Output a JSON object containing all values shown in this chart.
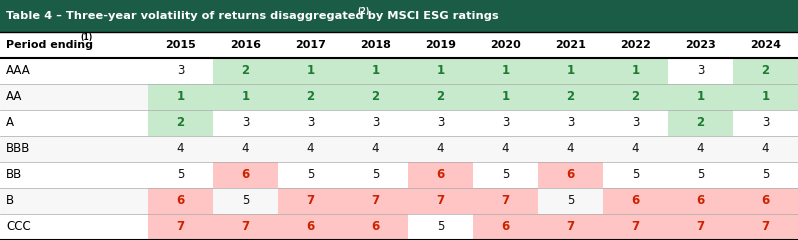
{
  "title": "Table 4 – Three-year volatility of returns disaggregated by MSCI ESG ratings",
  "title_superscript": "(2)",
  "col_header_label": "Period ending",
  "col_header_super": "(1)",
  "rows": [
    "AAA",
    "AA",
    "A",
    "BBB",
    "BB",
    "B",
    "CCC"
  ],
  "years": [
    "2015",
    "2016",
    "2017",
    "2018",
    "2019",
    "2020",
    "2021",
    "2022",
    "2023",
    "2024"
  ],
  "values": [
    [
      3,
      2,
      1,
      1,
      1,
      1,
      1,
      1,
      3,
      2
    ],
    [
      1,
      1,
      2,
      2,
      2,
      1,
      2,
      2,
      1,
      1
    ],
    [
      2,
      3,
      3,
      3,
      3,
      3,
      3,
      3,
      2,
      3
    ],
    [
      4,
      4,
      4,
      4,
      4,
      4,
      4,
      4,
      4,
      4
    ],
    [
      5,
      6,
      5,
      5,
      6,
      5,
      6,
      5,
      5,
      5
    ],
    [
      6,
      5,
      7,
      7,
      7,
      7,
      5,
      6,
      6,
      6
    ],
    [
      7,
      7,
      6,
      6,
      5,
      6,
      7,
      7,
      7,
      7
    ]
  ],
  "bg_colors": [
    [
      "none",
      "green",
      "green",
      "green",
      "green",
      "green",
      "green",
      "green",
      "none",
      "green"
    ],
    [
      "green",
      "green",
      "green",
      "green",
      "green",
      "green",
      "green",
      "green",
      "green",
      "green"
    ],
    [
      "green",
      "none",
      "none",
      "none",
      "none",
      "none",
      "none",
      "none",
      "green",
      "none"
    ],
    [
      "none",
      "none",
      "none",
      "none",
      "none",
      "none",
      "none",
      "none",
      "none",
      "none"
    ],
    [
      "none",
      "pink",
      "none",
      "none",
      "pink",
      "none",
      "pink",
      "none",
      "none",
      "none"
    ],
    [
      "pink",
      "none",
      "pink",
      "pink",
      "pink",
      "pink",
      "none",
      "pink",
      "pink",
      "pink"
    ],
    [
      "pink",
      "pink",
      "pink",
      "pink",
      "none",
      "pink",
      "pink",
      "pink",
      "pink",
      "pink"
    ]
  ],
  "text_colors": [
    [
      "black",
      "green",
      "green",
      "green",
      "green",
      "green",
      "green",
      "green",
      "black",
      "green"
    ],
    [
      "green",
      "green",
      "green",
      "green",
      "green",
      "green",
      "green",
      "green",
      "green",
      "green"
    ],
    [
      "green",
      "black",
      "black",
      "black",
      "black",
      "black",
      "black",
      "black",
      "green",
      "black"
    ],
    [
      "black",
      "black",
      "black",
      "black",
      "black",
      "black",
      "black",
      "black",
      "black",
      "black"
    ],
    [
      "black",
      "red",
      "black",
      "black",
      "red",
      "black",
      "red",
      "black",
      "black",
      "black"
    ],
    [
      "red",
      "black",
      "red",
      "red",
      "red",
      "red",
      "black",
      "red",
      "red",
      "red"
    ],
    [
      "red",
      "red",
      "red",
      "red",
      "black",
      "red",
      "red",
      "red",
      "red",
      "red"
    ]
  ],
  "title_bg": "#1a5c45",
  "title_text_color": "#ffffff",
  "green_bg": "#c8eacc",
  "pink_bg": "#ffc5c5",
  "green_text": "#1e7b34",
  "red_text": "#cc2200",
  "black_text": "#111111",
  "separator_color": "#aaaaaa",
  "row_alt_bg": "#f7f7f7"
}
